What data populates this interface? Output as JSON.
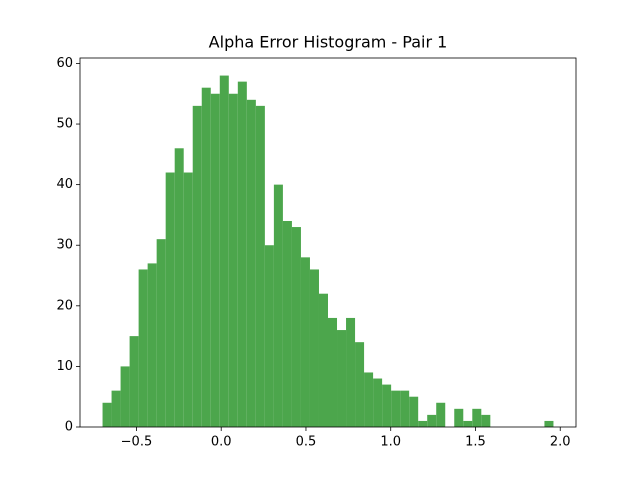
{
  "chart_data": {
    "type": "histogram",
    "title": "Alpha Error Histogram - Pair 1",
    "color": "#4ca64c",
    "bins": [
      -0.7,
      -0.6468,
      -0.5936,
      -0.5404,
      -0.4872,
      -0.434,
      -0.3808,
      -0.3276,
      -0.2744,
      -0.2212,
      -0.168,
      -0.1148,
      -0.0616,
      -0.0084,
      0.0448,
      0.098,
      0.1512,
      0.2044,
      0.2576,
      0.3108,
      0.364,
      0.4172,
      0.4704,
      0.5236,
      0.5768,
      0.63,
      0.6832,
      0.7364,
      0.7896,
      0.8428,
      0.896,
      0.9492,
      1.0024,
      1.0556,
      1.1088,
      1.162,
      1.2152,
      1.2684,
      1.3216,
      1.3748,
      1.428,
      1.4812,
      1.5344,
      1.5876,
      1.6408,
      1.694,
      1.7472,
      1.8004,
      1.8536,
      1.9068,
      1.96
    ],
    "values": [
      4,
      6,
      10,
      15,
      26,
      27,
      31,
      42,
      46,
      42,
      53,
      56,
      55,
      58,
      55,
      57,
      54,
      53,
      30,
      40,
      34,
      33,
      28,
      26,
      22,
      18,
      16,
      18,
      14,
      9,
      8,
      7,
      6,
      6,
      5,
      1,
      2,
      4,
      0,
      3,
      1,
      3,
      2,
      0,
      0,
      0,
      0,
      0,
      0,
      1
    ],
    "xlim": [
      -0.833,
      2.093
    ],
    "ylim": [
      0,
      60.9
    ],
    "xticks": [
      {
        "value": -0.5,
        "label": "−0.5"
      },
      {
        "value": 0,
        "label": "0.0"
      },
      {
        "value": 0.5,
        "label": "0.5"
      },
      {
        "value": 1,
        "label": "1.0"
      },
      {
        "value": 1.5,
        "label": "1.5"
      },
      {
        "value": 2,
        "label": "2.0"
      }
    ],
    "yticks": [
      0,
      10,
      20,
      30,
      40,
      50,
      60
    ]
  }
}
